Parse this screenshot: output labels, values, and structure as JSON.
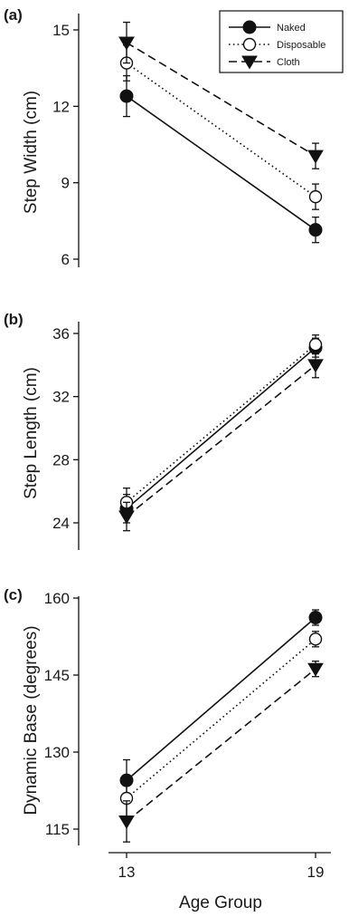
{
  "chart_data": [
    {
      "type": "line",
      "panel": "(a)",
      "ylabel": "Step Width (cm)",
      "xlabel": "",
      "categories": [
        "13",
        "19"
      ],
      "ylim": [
        6,
        15.5
      ],
      "yticks": [
        6,
        9,
        12,
        15
      ],
      "legend": "top-right",
      "series": [
        {
          "name": "Naked",
          "values": [
            12.4,
            7.15
          ],
          "errors": [
            0.8,
            0.5
          ],
          "marker": "filled-circle",
          "dash": "solid"
        },
        {
          "name": "Disposable",
          "values": [
            13.7,
            8.45
          ],
          "errors": [
            0.7,
            0.5
          ],
          "marker": "open-circle",
          "dash": "dotted"
        },
        {
          "name": "Cloth",
          "values": [
            14.5,
            10.05
          ],
          "errors": [
            0.8,
            0.5
          ],
          "marker": "filled-triangle",
          "dash": "dashed"
        }
      ]
    },
    {
      "type": "line",
      "panel": "(b)",
      "ylabel": "Step Length (cm)",
      "xlabel": "",
      "categories": [
        "13",
        "19"
      ],
      "ylim": [
        22,
        36.2
      ],
      "yticks": [
        24,
        28,
        32,
        36
      ],
      "series": [
        {
          "name": "Naked",
          "values": [
            24.9,
            35.1
          ],
          "errors": [
            0.9,
            0.6
          ],
          "marker": "filled-circle",
          "dash": "solid"
        },
        {
          "name": "Disposable",
          "values": [
            25.3,
            35.3
          ],
          "errors": [
            0.9,
            0.6
          ],
          "marker": "open-circle",
          "dash": "dotted"
        },
        {
          "name": "Cloth",
          "values": [
            24.4,
            34.0
          ],
          "errors": [
            0.9,
            0.8
          ],
          "marker": "filled-triangle",
          "dash": "dashed"
        }
      ]
    },
    {
      "type": "line",
      "panel": "(c)",
      "ylabel": "Dynamic Base (degrees)",
      "xlabel": "Age Group",
      "categories": [
        "13",
        "19"
      ],
      "ylim": [
        113,
        160
      ],
      "yticks": [
        115,
        130,
        145,
        160
      ],
      "series": [
        {
          "name": "Naked",
          "values": [
            124.5,
            156.2
          ],
          "errors": [
            4.0,
            1.5
          ],
          "marker": "filled-circle",
          "dash": "solid"
        },
        {
          "name": "Disposable",
          "values": [
            121.0,
            152.0
          ],
          "errors": [
            3.5,
            1.5
          ],
          "marker": "open-circle",
          "dash": "dotted"
        },
        {
          "name": "Cloth",
          "values": [
            116.5,
            146.2
          ],
          "errors": [
            4.0,
            1.5
          ],
          "marker": "filled-triangle",
          "dash": "dashed"
        }
      ]
    }
  ]
}
